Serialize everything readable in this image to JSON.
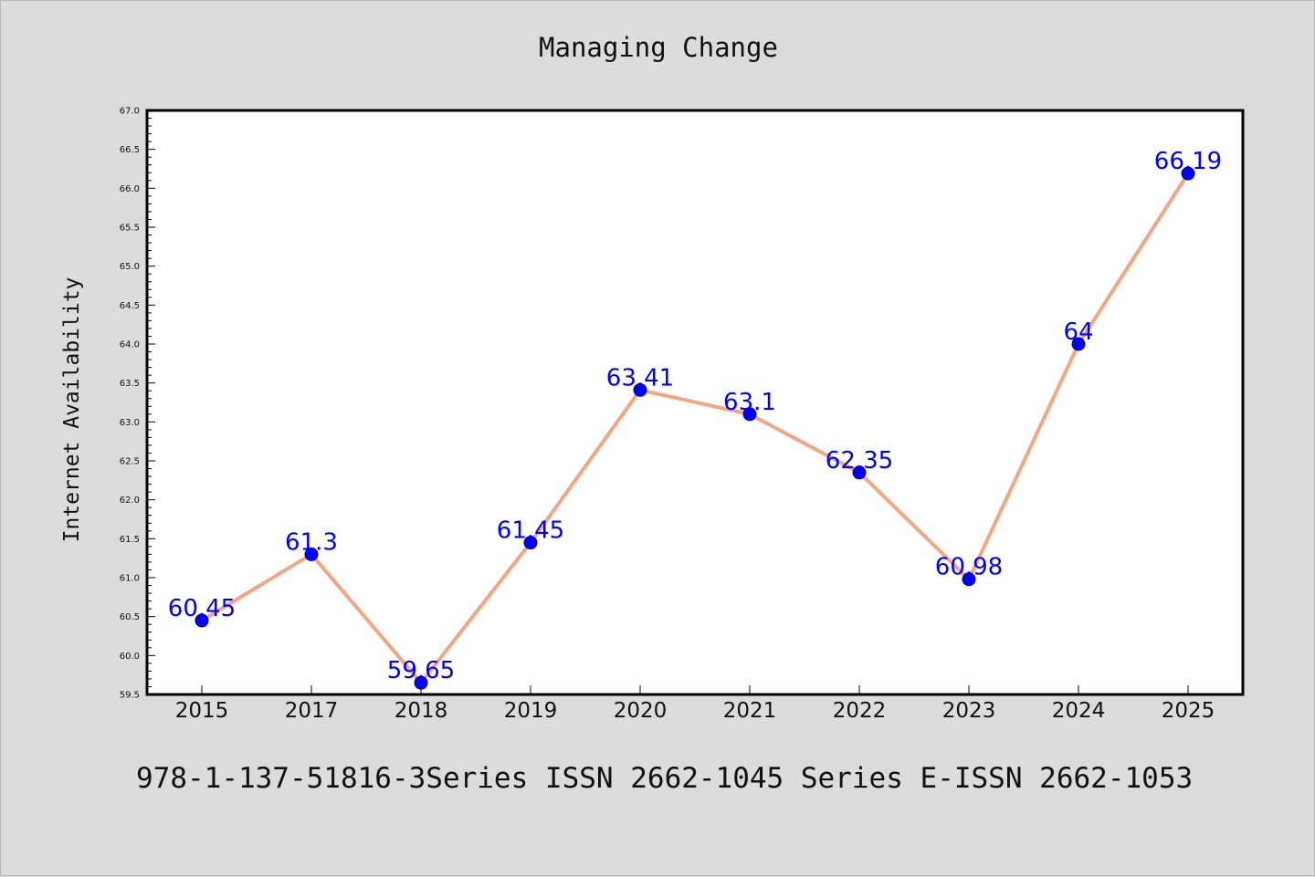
{
  "colors": {
    "background": "#dcdcdc",
    "plot_background": "#ffffff",
    "line": "#f4a582",
    "marker": "#0000ff",
    "data_label": "#0000ff",
    "axes": "#000000"
  },
  "footer": {
    "text": "978-1-137-51816-3Series ISSN 2662-1045 Series E-ISSN 2662-1053"
  },
  "chart_data": {
    "type": "line",
    "title": "Managing Change",
    "xlabel": "",
    "ylabel": "Internet Availability",
    "categories": [
      "2015",
      "2017",
      "2018",
      "2019",
      "2020",
      "2021",
      "2022",
      "2023",
      "2024",
      "2025"
    ],
    "series": [
      {
        "values": [
          60.45,
          61.3,
          59.65,
          61.45,
          63.41,
          63.1,
          62.35,
          60.98,
          64,
          66.19
        ],
        "labels": [
          "60.45",
          "61.3",
          "59.65",
          "61.45",
          "63.41",
          "63.1",
          "62.35",
          "60.98",
          "64",
          "66.19"
        ]
      }
    ],
    "ylim": [
      59.5,
      67.0
    ],
    "yticks": [
      "59.5",
      "60.0",
      "60.5",
      "61.0",
      "61.5",
      "62.0",
      "62.5",
      "63.0",
      "63.5",
      "64.0",
      "64.5",
      "65.0",
      "65.5",
      "66.0",
      "66.5",
      "67.0"
    ],
    "grid": false,
    "legend": "none"
  }
}
